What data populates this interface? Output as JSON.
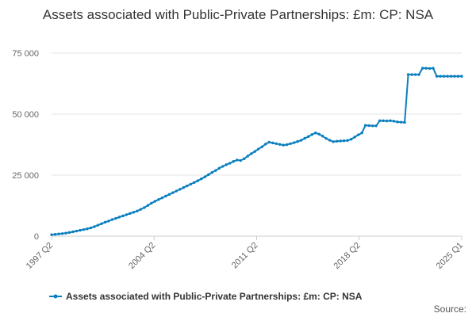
{
  "chart_data": {
    "type": "line",
    "title": "Assets associated with Public-Private Partnerships: £m: CP: NSA",
    "xlabel": "",
    "ylabel": "",
    "ylim": [
      0,
      75000
    ],
    "y_ticks": [
      0,
      25000,
      50000,
      75000
    ],
    "y_tick_labels": [
      "0",
      "25 000",
      "50 000",
      "75 000"
    ],
    "x_tick_labels": [
      "1997 Q2",
      "2004 Q2",
      "2011 Q2",
      "2018 Q2",
      "2025 Q1"
    ],
    "x_start": "1997 Q2",
    "x_end": "2025 Q1",
    "grid": "horizontal",
    "legend": "bottom",
    "source_label": "Source:",
    "series": [
      {
        "name": "Assets associated with Public-Private Partnerships: £m: CP: NSA",
        "color": "#0a7fc0",
        "values": [
          600,
          750,
          900,
          1050,
          1250,
          1500,
          1800,
          2100,
          2400,
          2700,
          3000,
          3400,
          3900,
          4500,
          5100,
          5700,
          6200,
          6800,
          7300,
          7800,
          8300,
          8800,
          9300,
          9800,
          10300,
          11000,
          11700,
          12600,
          13500,
          14300,
          15000,
          15700,
          16400,
          17100,
          17800,
          18500,
          19200,
          19900,
          20600,
          21300,
          22000,
          22700,
          23500,
          24300,
          25200,
          26100,
          26900,
          27800,
          28600,
          29300,
          29900,
          30600,
          31200,
          31000,
          31700,
          32800,
          33800,
          34700,
          35700,
          36600,
          37700,
          38500,
          38200,
          37900,
          37600,
          37300,
          37500,
          37900,
          38300,
          38800,
          39300,
          40100,
          40800,
          41600,
          42300,
          41800,
          41000,
          40000,
          39300,
          38700,
          38900,
          39000,
          39100,
          39200,
          39700,
          40600,
          41500,
          42300,
          45400,
          45300,
          45200,
          45200,
          47300,
          47300,
          47200,
          47300,
          47100,
          46800,
          46700,
          46600,
          66200,
          66200,
          66200,
          66200,
          68800,
          68800,
          68700,
          68800,
          65500,
          65500,
          65500,
          65500,
          65500,
          65500,
          65500,
          65500
        ]
      }
    ]
  }
}
